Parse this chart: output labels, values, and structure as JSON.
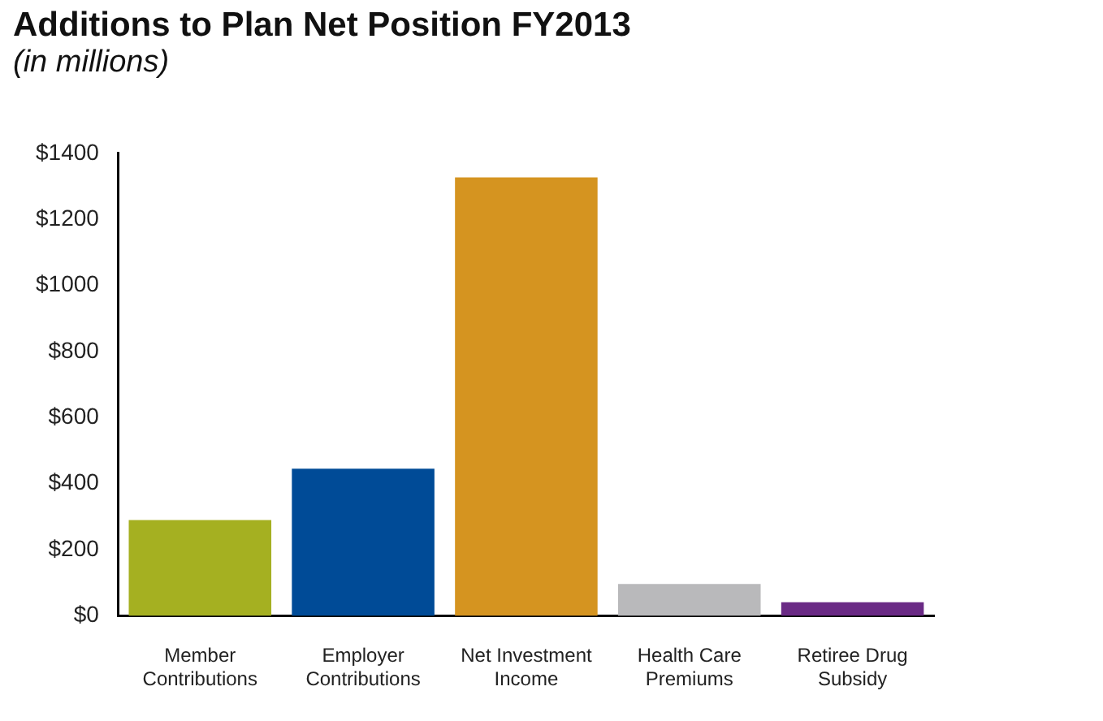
{
  "chart_data": {
    "type": "bar",
    "title": "Additions to Plan Net Position FY2013",
    "subtitle": "(in millions)",
    "categories": [
      "Member\nContributions",
      "Employer\nContributions",
      "Net Investment\nIncome",
      "Health Care\nPremiums",
      "Retiree Drug\nSubsidy"
    ],
    "values": [
      290,
      445,
      1327,
      96,
      41
    ],
    "colors": [
      "#a5b021",
      "#004b97",
      "#d59420",
      "#b9b9bb",
      "#6a2a85"
    ],
    "ylim": [
      0,
      1400
    ],
    "yticks": [
      {
        "value": 0,
        "label": "$0"
      },
      {
        "value": 200,
        "label": "$200"
      },
      {
        "value": 400,
        "label": "$400"
      },
      {
        "value": 600,
        "label": "$600"
      },
      {
        "value": 800,
        "label": "$800"
      },
      {
        "value": 1000,
        "label": "$1000"
      },
      {
        "value": 1200,
        "label": "$1200"
      },
      {
        "value": 1400,
        "label": "$1400"
      }
    ],
    "grid": false,
    "legend": false
  }
}
